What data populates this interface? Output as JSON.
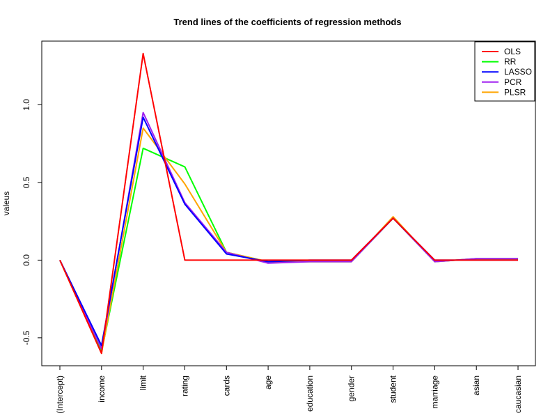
{
  "chart_data": {
    "type": "line",
    "title": "Trend lines of the coefficients of regression methods",
    "xlabel": "",
    "ylabel": "valeus",
    "categories": [
      "(Intercept)",
      "income",
      "limit",
      "rating",
      "cards",
      "age",
      "education",
      "gender",
      "student",
      "marriage",
      "asian",
      "caucasian"
    ],
    "ylim": [
      -0.68,
      1.41
    ],
    "yticks": [
      -0.5,
      0.0,
      0.5,
      1.0
    ],
    "ytick_labels": [
      "-0.5",
      "0.0",
      "0.5",
      "1.0"
    ],
    "legend_position": "top-right",
    "grid": false,
    "series": [
      {
        "name": "OLS",
        "color": "#ff0000",
        "values": [
          0.0,
          -0.6,
          1.33,
          0.0,
          0.0,
          0.0,
          0.0,
          0.0,
          0.27,
          0.0,
          0.0,
          0.0
        ]
      },
      {
        "name": "RR",
        "color": "#00ff00",
        "values": [
          0.0,
          -0.59,
          0.72,
          0.6,
          0.05,
          -0.01,
          -0.01,
          -0.01,
          0.27,
          -0.01,
          0.01,
          0.01
        ]
      },
      {
        "name": "LASSO",
        "color": "#0000ff",
        "values": [
          0.0,
          -0.55,
          0.92,
          0.36,
          0.04,
          -0.01,
          0.0,
          0.0,
          0.27,
          0.0,
          0.0,
          0.0
        ]
      },
      {
        "name": "PCR",
        "color": "#a020f0",
        "values": [
          0.0,
          -0.57,
          0.95,
          0.37,
          0.05,
          -0.02,
          -0.01,
          -0.01,
          0.27,
          -0.01,
          0.01,
          0.01
        ]
      },
      {
        "name": "PLSR",
        "color": "#ffa500",
        "values": [
          0.0,
          -0.6,
          0.85,
          0.49,
          0.05,
          -0.01,
          -0.01,
          -0.01,
          0.28,
          -0.01,
          0.01,
          0.01
        ]
      }
    ]
  }
}
